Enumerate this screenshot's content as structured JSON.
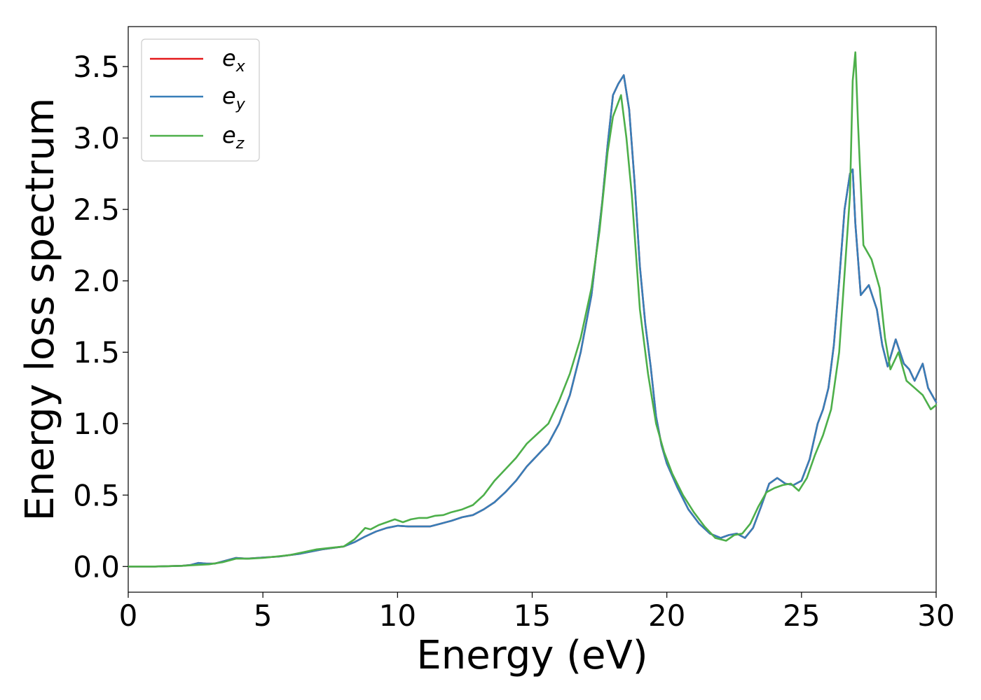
{
  "chart_data": {
    "type": "line",
    "xlabel": "Energy (eV)",
    "ylabel": "Energy loss spectrum",
    "xlim": [
      0,
      30
    ],
    "ylim": [
      -0.18,
      3.78
    ],
    "xticks": [
      "0",
      "5",
      "10",
      "15",
      "20",
      "25",
      "30"
    ],
    "yticks": [
      "0.0",
      "0.5",
      "1.0",
      "1.5",
      "2.0",
      "2.5",
      "3.0",
      "3.5"
    ],
    "grid": false,
    "legend_position": "top-left",
    "series": [
      {
        "name": "e_x",
        "legend_main": "e",
        "legend_sub": "x",
        "color": "#e41a1c",
        "x": [
          0,
          1,
          2,
          2.3,
          2.6,
          2.9,
          3.2,
          3.6,
          4.0,
          4.4,
          4.8,
          5.2,
          5.6,
          6.0,
          6.4,
          6.8,
          7.2,
          7.6,
          8.0,
          8.4,
          8.8,
          9.2,
          9.6,
          10.0,
          10.4,
          10.8,
          11.2,
          11.6,
          12.0,
          12.4,
          12.8,
          13.2,
          13.6,
          14.0,
          14.4,
          14.8,
          15.2,
          15.6,
          16.0,
          16.4,
          16.8,
          17.2,
          17.6,
          17.8,
          18.0,
          18.2,
          18.4,
          18.6,
          18.8,
          19.0,
          19.2,
          19.4,
          19.6,
          19.8,
          20.0,
          20.4,
          20.8,
          21.2,
          21.6,
          22.0,
          22.3,
          22.6,
          22.9,
          23.2,
          23.5,
          23.8,
          24.1,
          24.4,
          24.7,
          25.0,
          25.3,
          25.6,
          25.8,
          26.0,
          26.2,
          26.4,
          26.6,
          26.8,
          26.9,
          27.0,
          27.2,
          27.5,
          27.8,
          28.0,
          28.2,
          28.5,
          28.8,
          29.0,
          29.2,
          29.5,
          29.7,
          30.0
        ],
        "y": [
          0.0,
          0.0,
          0.005,
          0.01,
          0.025,
          0.02,
          0.02,
          0.04,
          0.06,
          0.055,
          0.06,
          0.065,
          0.07,
          0.08,
          0.09,
          0.105,
          0.12,
          0.13,
          0.14,
          0.17,
          0.21,
          0.245,
          0.27,
          0.285,
          0.28,
          0.28,
          0.28,
          0.3,
          0.32,
          0.345,
          0.36,
          0.4,
          0.45,
          0.52,
          0.6,
          0.7,
          0.78,
          0.86,
          1.0,
          1.2,
          1.5,
          1.9,
          2.55,
          2.95,
          3.3,
          3.38,
          3.44,
          3.2,
          2.7,
          2.1,
          1.7,
          1.4,
          1.05,
          0.85,
          0.72,
          0.55,
          0.4,
          0.3,
          0.23,
          0.2,
          0.22,
          0.23,
          0.2,
          0.27,
          0.42,
          0.58,
          0.62,
          0.58,
          0.57,
          0.6,
          0.75,
          1.0,
          1.1,
          1.25,
          1.55,
          2.0,
          2.5,
          2.75,
          2.78,
          2.4,
          1.9,
          1.97,
          1.8,
          1.55,
          1.4,
          1.59,
          1.42,
          1.38,
          1.3,
          1.42,
          1.25,
          1.15
        ]
      },
      {
        "name": "e_y",
        "legend_main": "e",
        "legend_sub": "y",
        "color": "#377eb8",
        "x": [
          0,
          1,
          2,
          2.3,
          2.6,
          2.9,
          3.2,
          3.6,
          4.0,
          4.4,
          4.8,
          5.2,
          5.6,
          6.0,
          6.4,
          6.8,
          7.2,
          7.6,
          8.0,
          8.4,
          8.8,
          9.2,
          9.6,
          10.0,
          10.4,
          10.8,
          11.2,
          11.6,
          12.0,
          12.4,
          12.8,
          13.2,
          13.6,
          14.0,
          14.4,
          14.8,
          15.2,
          15.6,
          16.0,
          16.4,
          16.8,
          17.2,
          17.6,
          17.8,
          18.0,
          18.2,
          18.4,
          18.6,
          18.8,
          19.0,
          19.2,
          19.4,
          19.6,
          19.8,
          20.0,
          20.4,
          20.8,
          21.2,
          21.6,
          22.0,
          22.3,
          22.6,
          22.9,
          23.2,
          23.5,
          23.8,
          24.1,
          24.4,
          24.7,
          25.0,
          25.3,
          25.6,
          25.8,
          26.0,
          26.2,
          26.4,
          26.6,
          26.8,
          26.9,
          27.0,
          27.2,
          27.5,
          27.8,
          28.0,
          28.2,
          28.5,
          28.8,
          29.0,
          29.2,
          29.5,
          29.7,
          30.0
        ],
        "y": [
          0.0,
          0.0,
          0.005,
          0.01,
          0.025,
          0.02,
          0.02,
          0.04,
          0.06,
          0.055,
          0.06,
          0.065,
          0.07,
          0.08,
          0.09,
          0.105,
          0.12,
          0.13,
          0.14,
          0.17,
          0.21,
          0.245,
          0.27,
          0.285,
          0.28,
          0.28,
          0.28,
          0.3,
          0.32,
          0.345,
          0.36,
          0.4,
          0.45,
          0.52,
          0.6,
          0.7,
          0.78,
          0.86,
          1.0,
          1.2,
          1.5,
          1.9,
          2.55,
          2.95,
          3.3,
          3.38,
          3.44,
          3.2,
          2.7,
          2.1,
          1.7,
          1.4,
          1.05,
          0.85,
          0.72,
          0.55,
          0.4,
          0.3,
          0.23,
          0.2,
          0.22,
          0.23,
          0.2,
          0.27,
          0.42,
          0.58,
          0.62,
          0.58,
          0.57,
          0.6,
          0.75,
          1.0,
          1.1,
          1.25,
          1.55,
          2.0,
          2.5,
          2.75,
          2.78,
          2.4,
          1.9,
          1.97,
          1.8,
          1.55,
          1.4,
          1.59,
          1.42,
          1.38,
          1.3,
          1.42,
          1.25,
          1.15
        ]
      },
      {
        "name": "e_z",
        "legend_main": "e",
        "legend_sub": "z",
        "color": "#4daf4a",
        "x": [
          0,
          1,
          2,
          2.5,
          3.0,
          3.5,
          4.0,
          4.5,
          5.0,
          5.5,
          6.0,
          6.5,
          7.0,
          7.5,
          8.0,
          8.4,
          8.8,
          9.0,
          9.3,
          9.6,
          9.9,
          10.2,
          10.5,
          10.8,
          11.1,
          11.4,
          11.7,
          12.0,
          12.4,
          12.8,
          13.2,
          13.6,
          14.0,
          14.4,
          14.8,
          15.2,
          15.6,
          16.0,
          16.4,
          16.8,
          17.2,
          17.5,
          17.8,
          18.0,
          18.3,
          18.5,
          18.7,
          19.0,
          19.3,
          19.6,
          19.9,
          20.2,
          20.6,
          21.0,
          21.4,
          21.8,
          22.2,
          22.5,
          22.8,
          23.1,
          23.4,
          23.7,
          24.0,
          24.3,
          24.6,
          24.9,
          25.2,
          25.5,
          25.8,
          26.1,
          26.4,
          26.6,
          26.8,
          26.9,
          27.0,
          27.1,
          27.3,
          27.6,
          27.9,
          28.1,
          28.3,
          28.6,
          28.9,
          29.2,
          29.5,
          29.8,
          30.0
        ],
        "y": [
          0.0,
          0.0,
          0.005,
          0.01,
          0.015,
          0.03,
          0.055,
          0.055,
          0.06,
          0.07,
          0.08,
          0.1,
          0.12,
          0.13,
          0.14,
          0.19,
          0.27,
          0.26,
          0.29,
          0.31,
          0.33,
          0.31,
          0.33,
          0.34,
          0.34,
          0.355,
          0.36,
          0.38,
          0.4,
          0.43,
          0.5,
          0.6,
          0.68,
          0.76,
          0.86,
          0.93,
          1.0,
          1.16,
          1.35,
          1.6,
          1.95,
          2.35,
          2.9,
          3.15,
          3.3,
          3.0,
          2.6,
          1.8,
          1.35,
          1.0,
          0.8,
          0.65,
          0.5,
          0.38,
          0.28,
          0.2,
          0.18,
          0.22,
          0.23,
          0.3,
          0.42,
          0.52,
          0.55,
          0.57,
          0.58,
          0.53,
          0.62,
          0.78,
          0.92,
          1.1,
          1.5,
          2.05,
          2.6,
          3.4,
          3.6,
          3.1,
          2.25,
          2.15,
          1.95,
          1.6,
          1.38,
          1.5,
          1.3,
          1.25,
          1.2,
          1.1,
          1.13
        ]
      }
    ]
  }
}
